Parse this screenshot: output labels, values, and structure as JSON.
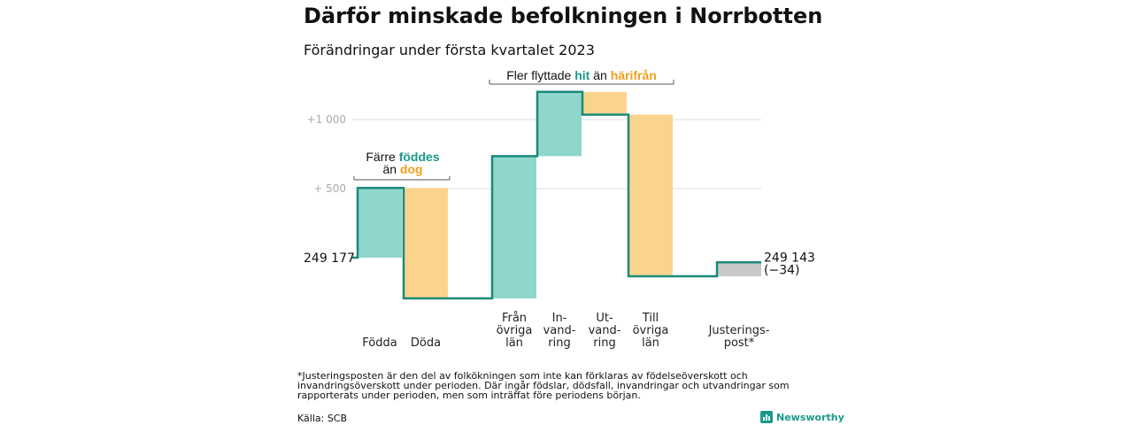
{
  "title": "Därför minskade befolkningen i Norrbotten",
  "subtitle": "Förändringar under första kvartalet 2023",
  "colors": {
    "increase": "#8fd6cc",
    "decrease": "#fad48c",
    "adjustment": "#c8c8c8",
    "line": "#1a8a7a",
    "grid": "#dddddd",
    "teal_text": "#1a9a8a",
    "orange_text": "#f0a020"
  },
  "chart_data": {
    "type": "waterfall",
    "start": {
      "label": "249 177",
      "value": 0
    },
    "end": {
      "label": "249 143",
      "change_label": "(−34)",
      "value": -34
    },
    "y_ticks": [
      {
        "value": 500,
        "label": "+ 500"
      },
      {
        "value": 1000,
        "label": "+1 000"
      }
    ],
    "ylim": [
      -320,
      1230
    ],
    "steps": [
      {
        "label_lines": [
          "Födda"
        ],
        "delta": 505,
        "kind": "increase"
      },
      {
        "label_lines": [
          "Döda"
        ],
        "delta": -800,
        "kind": "decrease"
      },
      {
        "label_lines": [
          "Från",
          "övriga",
          "län"
        ],
        "delta": 1030,
        "kind": "increase"
      },
      {
        "label_lines": [
          "In-",
          "vand-",
          "ring"
        ],
        "delta": 465,
        "kind": "increase"
      },
      {
        "label_lines": [
          "Ut-",
          "vand-",
          "ring"
        ],
        "delta": -165,
        "kind": "decrease"
      },
      {
        "label_lines": [
          "Till",
          "övriga",
          "län"
        ],
        "delta": -1170,
        "kind": "decrease"
      },
      {
        "label_lines": [
          "Justerings-",
          "post*"
        ],
        "delta": 101,
        "kind": "adjustment"
      }
    ]
  },
  "annotations": {
    "birth": {
      "line1_prefix": "Färre ",
      "line1_highlight": "föddes",
      "line2_prefix": "än ",
      "line2_highlight": "dog"
    },
    "migration": {
      "prefix": "Fler flyttade ",
      "highlight1": "hit",
      "middle": " än ",
      "highlight2": "härifrån"
    }
  },
  "footnote": "*Justeringsposten är den del av folkökningen som inte kan förklaras av födelseöverskott och invandringsöverskott under perioden. Där ingår födslar, dödsfall, invandringar och utvandringar som rapporterats under perioden, men som inträffat före periodens början.",
  "source": "Källa: SCB",
  "brand": {
    "name": "Newsworthy",
    "icon": "newsworthy-logo-icon"
  }
}
